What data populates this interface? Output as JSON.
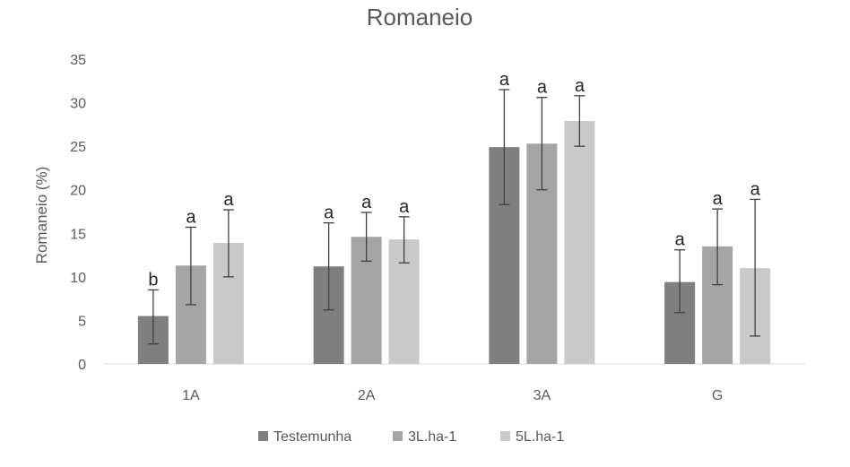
{
  "chart_data": {
    "type": "bar",
    "title": "Romaneio",
    "ylabel": "Romaneio (%)",
    "xlabel": "",
    "ylim": [
      0,
      35
    ],
    "yticks": [
      0,
      5,
      10,
      15,
      20,
      25,
      30,
      35
    ],
    "grid": false,
    "legend_position": "bottom",
    "categories": [
      "1A",
      "2A",
      "3A",
      "G"
    ],
    "series": [
      {
        "name": "Testemunha",
        "color": "#7f7f7f",
        "values": [
          5.5,
          11.2,
          24.9,
          9.4
        ],
        "err_low": [
          2.3,
          6.2,
          18.3,
          5.9
        ],
        "err_high": [
          8.5,
          16.2,
          31.5,
          13.1
        ],
        "letters": [
          "b",
          "a",
          "a",
          "a"
        ]
      },
      {
        "name": "3L.ha-1",
        "color": "#a5a5a5",
        "values": [
          11.3,
          14.6,
          25.3,
          13.5
        ],
        "err_low": [
          6.8,
          11.8,
          20.0,
          9.1
        ],
        "err_high": [
          15.7,
          17.4,
          30.6,
          17.8
        ],
        "letters": [
          "a",
          "a",
          "a",
          "a"
        ]
      },
      {
        "name": "5L.ha-1",
        "color": "#c9c9c9",
        "values": [
          13.9,
          14.3,
          27.9,
          11.0
        ],
        "err_low": [
          10.0,
          11.6,
          25.0,
          3.2
        ],
        "err_high": [
          17.7,
          16.9,
          30.8,
          18.9
        ],
        "letters": [
          "a",
          "a",
          "a",
          "a"
        ]
      }
    ]
  }
}
